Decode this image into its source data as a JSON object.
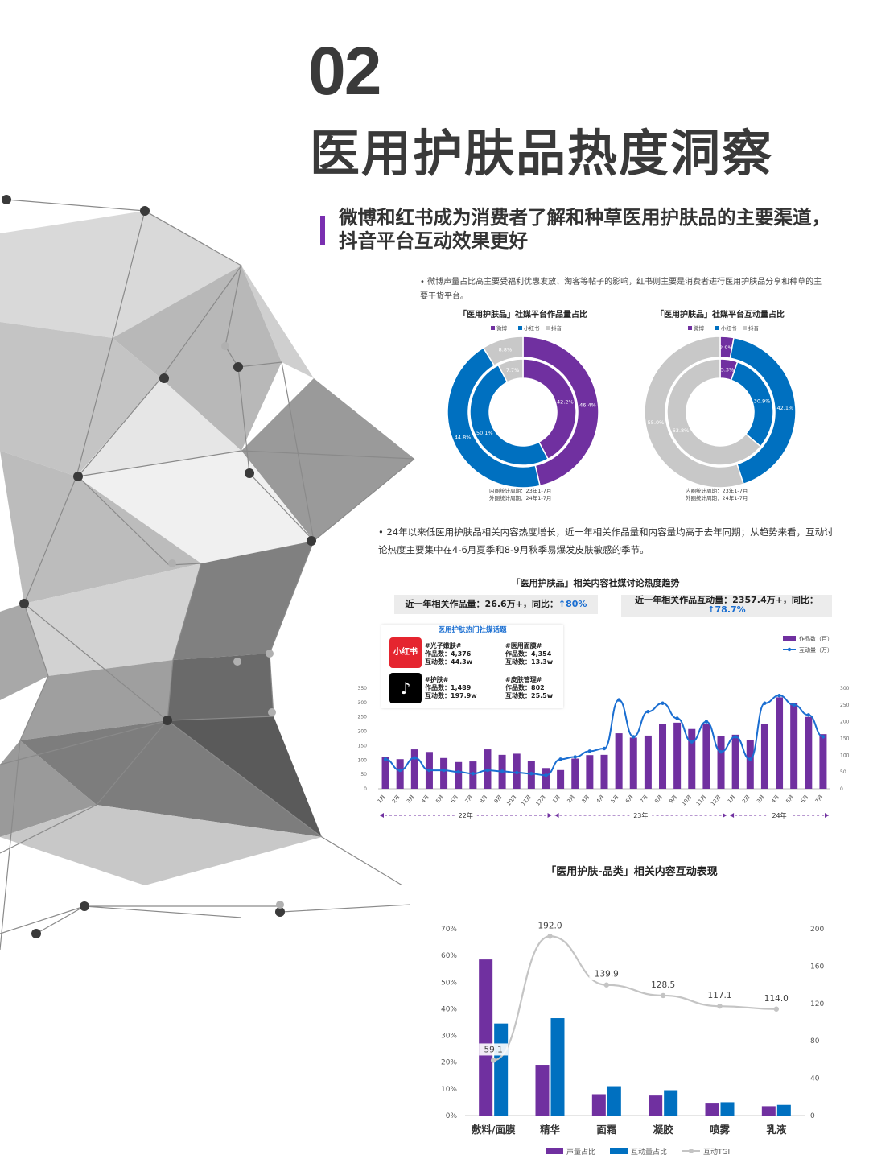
{
  "header": {
    "section_number": "02",
    "section_title": "医用护肤品热度洞察",
    "subtitle": "微博和红书成为消费者了解和种草医用护肤品的主要渠道，抖音平台互动效果更好"
  },
  "notes": {
    "note1": "•  微博声量占比高主要受福利优惠发放、淘客等帖子的影响，红书则主要是消费者进行医用护肤品分享和种草的主要干货平台。",
    "note2": "•  24年以来低医用护肤品相关内容热度增长，近一年相关作品量和内容量均高于去年同期；从趋势来看，互动讨论热度主要集中在4-6月夏季和8-9月秋季易爆发皮肤敏感的季节。"
  },
  "colors": {
    "purple": "#7030a0",
    "blue": "#0070c0",
    "gray": "#c8c8c8",
    "line": "#1a6ed1"
  },
  "donut_legend": [
    "微博",
    "小红书",
    "抖音"
  ],
  "donut_period_inner": "内圈统计周期：23年1-7月",
  "donut_period_outer": "外圈统计周期：24年1-7月",
  "kpis": {
    "works": "近一年相关作品量：26.6万+，同比：",
    "works_growth": "↑80%",
    "interactions": "近一年相关作品互动量：2357.4万+，同比：",
    "interactions_growth": "↑78.7%"
  },
  "topics": {
    "header": "医用护肤热门社媒话题",
    "red_app": "小红书",
    "black_app": "♪",
    "items": [
      "#光子嫩肤#\n作品数：4,376\n互动数：44.3w",
      "#医用面膜#\n作品数：4,354\n互动数：13.3w",
      "#护肤#\n作品数：1,489\n互动数：197.9w",
      "#皮肤管理#\n作品数：802\n互动数：25.5w"
    ]
  },
  "chart_data": [
    {
      "type": "pie",
      "title": "「医用护肤品」社媒平台作品量占比",
      "categories": [
        "微博",
        "小红书",
        "抖音"
      ],
      "series": [
        {
          "values": [
            46.4,
            44.8,
            8.8
          ]
        },
        {
          "values": [
            42.2,
            50.1,
            7.7
          ]
        }
      ]
    },
    {
      "type": "pie",
      "title": "「医用护肤品」社媒平台互动量占比",
      "categories": [
        "微博",
        "小红书",
        "抖音"
      ],
      "series": [
        {
          "values": [
            2.9,
            42.1,
            55.0
          ]
        },
        {
          "values": [
            5.3,
            30.9,
            63.8
          ]
        }
      ]
    },
    {
      "type": "bar",
      "title": "「医用护肤品」相关内容社媒讨论热度趋势",
      "x": [
        "1月",
        "2月",
        "3月",
        "4月",
        "5月",
        "6月",
        "7月",
        "8月",
        "9月",
        "10月",
        "11月",
        "12月",
        "1月",
        "2月",
        "3月",
        "4月",
        "5月",
        "6月",
        "7月",
        "8月",
        "9月",
        "10月",
        "11月",
        "12月",
        "1月",
        "2月",
        "3月",
        "4月",
        "5月",
        "6月",
        "7月"
      ],
      "year_labels": [
        "22年",
        "23年",
        "24年"
      ],
      "series": [
        {
          "name": "作品数（百）",
          "type": "bar",
          "axis": "left",
          "values": [
            112,
            103,
            137,
            128,
            107,
            93,
            95,
            137,
            118,
            122,
            97,
            72,
            65,
            105,
            117,
            118,
            193,
            178,
            185,
            225,
            230,
            208,
            225,
            183,
            188,
            170,
            225,
            318,
            298,
            250,
            190
          ]
        },
        {
          "name": "互动量（万）",
          "type": "line",
          "axis": "right",
          "values": [
            88,
            55,
            92,
            55,
            55,
            50,
            45,
            55,
            52,
            48,
            45,
            40,
            88,
            95,
            112,
            120,
            265,
            155,
            230,
            255,
            210,
            140,
            200,
            110,
            155,
            88,
            255,
            278,
            250,
            220,
            155
          ]
        }
      ],
      "ylim_left": [
        0,
        350
      ],
      "yticks_left": [
        "0",
        "50",
        "100",
        "150",
        "200",
        "250",
        "300",
        "350"
      ],
      "ylim_right": [
        0,
        300
      ],
      "yticks_right": [
        "0",
        "50",
        "100",
        "150",
        "200",
        "250",
        "300"
      ]
    },
    {
      "type": "bar",
      "title": "「医用护肤-品类」相关内容互动表现",
      "categories": [
        "敷料/面膜",
        "精华",
        "面霜",
        "凝胶",
        "喷雾",
        "乳液"
      ],
      "series": [
        {
          "name": "声量占比",
          "type": "bar",
          "axis": "left",
          "values": [
            58.5,
            19.0,
            8.0,
            7.5,
            4.5,
            3.5
          ]
        },
        {
          "name": "互动量占比",
          "type": "bar",
          "axis": "left",
          "values": [
            34.5,
            36.5,
            11.0,
            9.5,
            5.0,
            4.0
          ]
        },
        {
          "name": "互动TGI",
          "type": "line",
          "axis": "right",
          "values": [
            59.1,
            192.0,
            139.9,
            128.5,
            117.1,
            114.0
          ],
          "labels": [
            "59.1",
            "192.0",
            "139.9",
            "128.5",
            "117.1",
            "114.0"
          ]
        }
      ],
      "ylim_left": [
        0,
        70
      ],
      "yticks_left": [
        "0%",
        "10%",
        "20%",
        "30%",
        "40%",
        "50%",
        "60%",
        "70%"
      ],
      "ylim_right": [
        0,
        200
      ],
      "yticks_right": [
        "0",
        "40",
        "80",
        "120",
        "160",
        "200"
      ]
    }
  ]
}
